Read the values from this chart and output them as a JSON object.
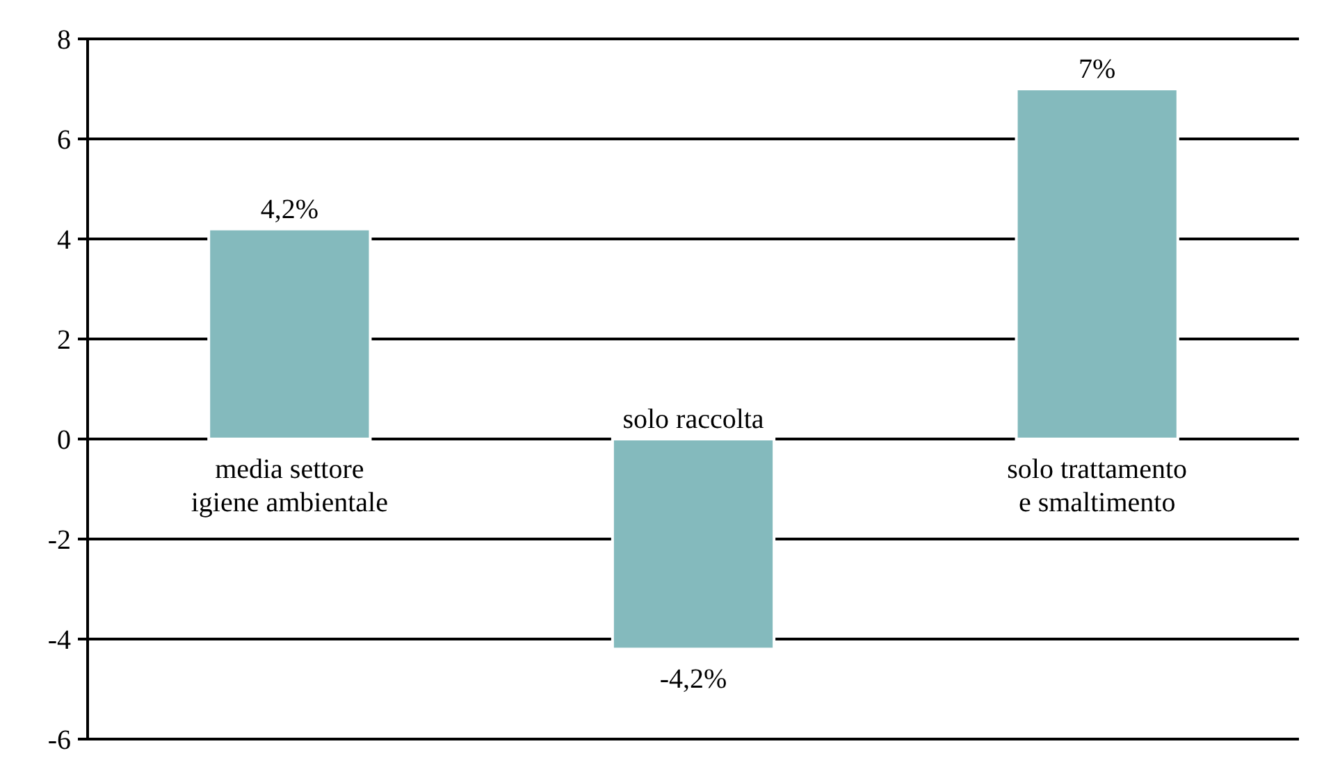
{
  "chart_data": {
    "type": "bar",
    "categories": [
      "media settore\nigiene ambientale",
      "solo raccolta",
      "solo trattamento\ne smaltimento"
    ],
    "values": [
      4.2,
      -4.2,
      7
    ],
    "color": "#84babd",
    "value_labels": [
      "4,2%",
      "-4,2%",
      "7%"
    ],
    "ylim": [
      -6,
      8
    ],
    "yticks": [
      -6,
      -4,
      -2,
      0,
      2,
      4,
      6,
      8
    ],
    "grid": "y"
  }
}
